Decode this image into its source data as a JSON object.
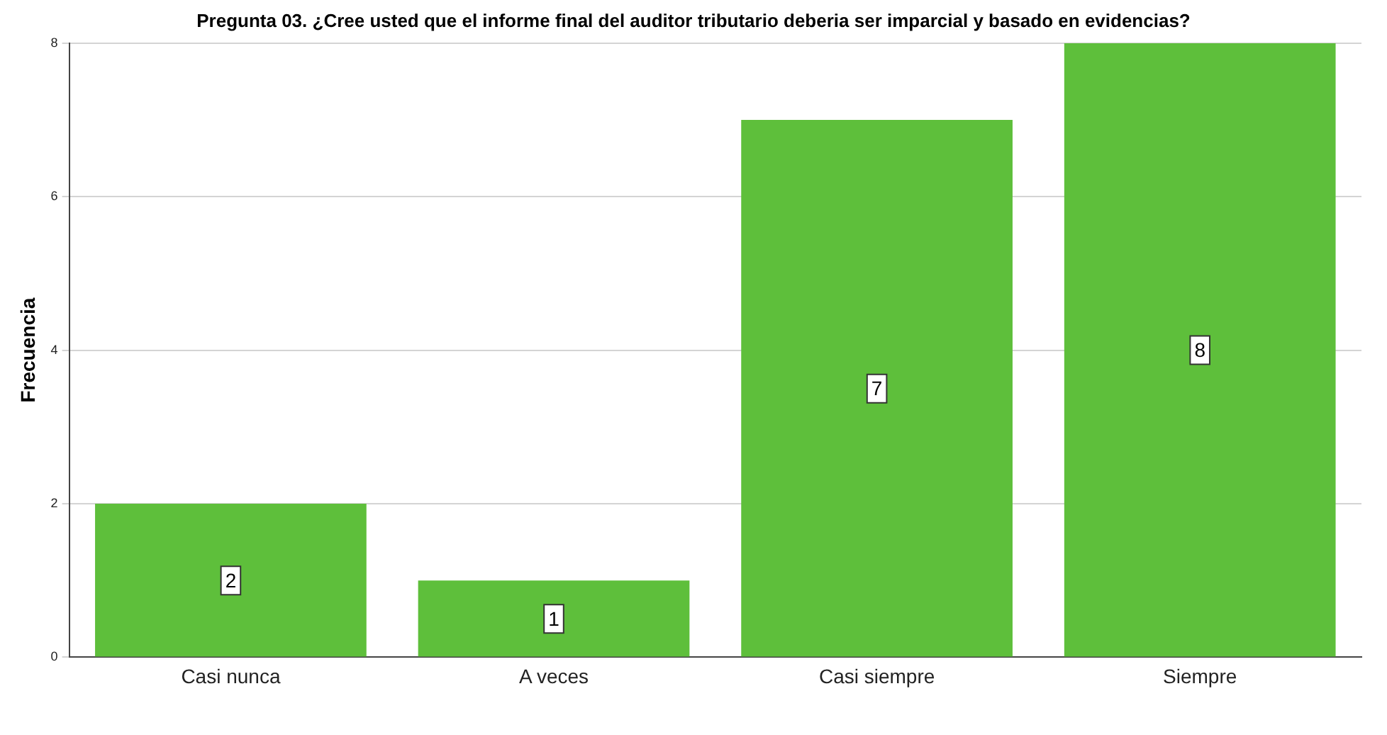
{
  "chart_data": {
    "type": "bar",
    "title": "Pregunta 03. ¿Cree usted que el informe final del auditor tributario deberia ser imparcial y basado en evidencias?",
    "ylabel": "Frecuencia",
    "categories": [
      "Casi nunca",
      "A veces",
      "Casi siempre",
      "Siempre"
    ],
    "values": [
      2,
      1,
      7,
      8
    ],
    "color": "#5ebf3b",
    "ylim": [
      0,
      8
    ],
    "yticks": [
      0,
      2,
      4,
      6,
      8
    ],
    "grid": "y",
    "data_labels": true,
    "legend": false
  }
}
